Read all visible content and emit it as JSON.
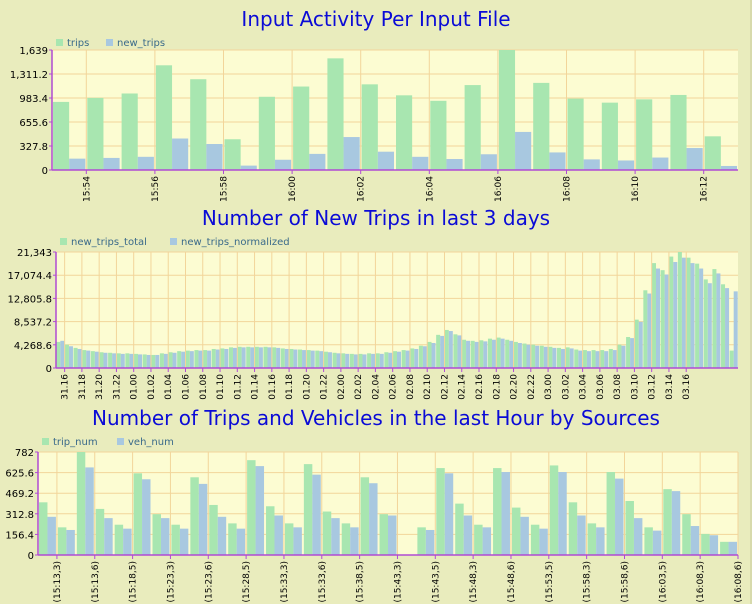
{
  "chart_data": [
    {
      "type": "bar",
      "title": "Input Activity Per Input File",
      "xlabel": "",
      "ylabel": "",
      "ylim": [
        0,
        1639
      ],
      "yticks": [
        "0",
        "327.8",
        "655.6",
        "983.4",
        "1,311.2",
        "1,639"
      ],
      "tick_labels": [
        "15:54",
        "15:56",
        "15:58",
        "16:00",
        "16:02",
        "16:04",
        "16:06",
        "16:08",
        "16:10",
        "16:12"
      ],
      "tick_every": 2,
      "series": [
        {
          "name": "trips",
          "color": "#a8e6b0",
          "values": [
            930,
            985,
            1045,
            1430,
            1240,
            420,
            1000,
            1140,
            1525,
            1170,
            1020,
            945,
            1160,
            1639,
            1190,
            975,
            920,
            965,
            1025,
            460
          ]
        },
        {
          "name": "new_trips",
          "color": "#a8c8e0",
          "values": [
            155,
            165,
            180,
            430,
            355,
            60,
            140,
            220,
            450,
            250,
            180,
            150,
            215,
            520,
            240,
            145,
            130,
            170,
            300,
            55
          ]
        }
      ],
      "grid": true,
      "legend": "top-left"
    },
    {
      "type": "bar",
      "title": "Number of New Trips in last 3 days",
      "xlabel": "",
      "ylabel": "",
      "ylim": [
        0,
        21343
      ],
      "yticks": [
        "0",
        "4,268.6",
        "8,537.2",
        "12,805.8",
        "17,074.4",
        "21,343"
      ],
      "tick_labels": [
        "31.16",
        "31.18",
        "31.20",
        "31.22",
        "01.00",
        "01.02",
        "01.04",
        "01.06",
        "01.08",
        "01.10",
        "01.12",
        "01.14",
        "01.16",
        "01.18",
        "01.20",
        "01.22",
        "02.00",
        "02.02",
        "02.04",
        "02.06",
        "02.08",
        "02.10",
        "02.12",
        "02.14",
        "02.16",
        "02.18",
        "02.20",
        "02.22",
        "03.00",
        "03.02",
        "03.04",
        "03.06",
        "03.08",
        "03.10",
        "03.12",
        "03.14",
        "03.16"
      ],
      "tick_every": 2,
      "series": [
        {
          "name": "new_trips_total",
          "color": "#a8e6b0",
          "values": [
            4800,
            4300,
            3700,
            3300,
            3100,
            2900,
            2800,
            2700,
            2700,
            2600,
            2500,
            2400,
            2700,
            2900,
            3100,
            3200,
            3300,
            3300,
            3500,
            3600,
            3800,
            3900,
            3900,
            3900,
            3900,
            3800,
            3600,
            3500,
            3400,
            3300,
            3200,
            3000,
            2800,
            2700,
            2600,
            2600,
            2700,
            2700,
            2900,
            3100,
            3300,
            3600,
            4100,
            4800,
            6100,
            7000,
            6200,
            5200,
            5000,
            5100,
            5400,
            5600,
            5200,
            4800,
            4500,
            4300,
            4100,
            3900,
            3700,
            3800,
            3400,
            3300,
            3300,
            3300,
            3500,
            4300,
            5700,
            8900,
            14300,
            19300,
            18000,
            20500,
            21343,
            20300,
            19200,
            16300,
            18200,
            15400,
            3200
          ]
        },
        {
          "name": "new_trips_normalized",
          "color": "#a8c8e0",
          "values": [
            5000,
            4000,
            3500,
            3200,
            3000,
            2800,
            2700,
            2600,
            2600,
            2500,
            2400,
            2400,
            2600,
            2800,
            3000,
            3100,
            3200,
            3200,
            3400,
            3500,
            3700,
            3800,
            3800,
            3800,
            3800,
            3700,
            3500,
            3400,
            3300,
            3200,
            3100,
            2900,
            2700,
            2600,
            2500,
            2500,
            2600,
            2600,
            2800,
            3000,
            3200,
            3500,
            4000,
            4600,
            5900,
            6800,
            6000,
            5000,
            4800,
            4900,
            5200,
            5400,
            5000,
            4600,
            4300,
            4100,
            3900,
            3700,
            3500,
            3600,
            3200,
            3100,
            3100,
            3100,
            3300,
            4100,
            5500,
            8500,
            13700,
            18300,
            17200,
            19500,
            20300,
            19300,
            18300,
            15600,
            17400,
            14700,
            14100
          ]
        }
      ],
      "grid": true,
      "legend": "top-left"
    },
    {
      "type": "bar",
      "title": "Number of Trips and Vehicles in the last Hour by Sources",
      "xlabel": "",
      "ylabel": "",
      "ylim": [
        0,
        782
      ],
      "yticks": [
        "0",
        "156.4",
        "312.8",
        "469.2",
        "625.6",
        "782"
      ],
      "tick_labels": [
        "(15:13,3)",
        "(15:13,6)",
        "(15:18,5)",
        "(15:23,3)",
        "(15:23,6)",
        "(15:28,5)",
        "(15:33,3)",
        "(15:33,6)",
        "(15:38,5)",
        "(15:43,3)",
        "(15:43,5)",
        "(15:48,3)",
        "(15:48,6)",
        "(15:53,5)",
        "(15:58,3)",
        "(15:58,6)",
        "(16:03,5)",
        "(16:08,3)",
        "(16:08,6)"
      ],
      "tick_every": 2,
      "series": [
        {
          "name": "trip_num",
          "color": "#a8e6b0",
          "values": [
            400,
            210,
            782,
            350,
            230,
            620,
            310,
            230,
            590,
            380,
            240,
            720,
            370,
            240,
            690,
            330,
            240,
            590,
            310,
            0,
            210,
            660,
            390,
            230,
            660,
            360,
            230,
            680,
            400,
            240,
            630,
            410,
            210,
            500,
            310,
            160,
            100
          ]
        },
        {
          "name": "veh_num",
          "color": "#a8c8e0",
          "values": [
            290,
            190,
            665,
            280,
            200,
            575,
            280,
            200,
            540,
            290,
            200,
            675,
            300,
            210,
            610,
            280,
            210,
            545,
            300,
            0,
            190,
            620,
            300,
            210,
            630,
            290,
            200,
            630,
            300,
            210,
            580,
            280,
            185,
            485,
            220,
            150,
            100
          ]
        }
      ],
      "grid": true,
      "legend": "top-left"
    }
  ]
}
